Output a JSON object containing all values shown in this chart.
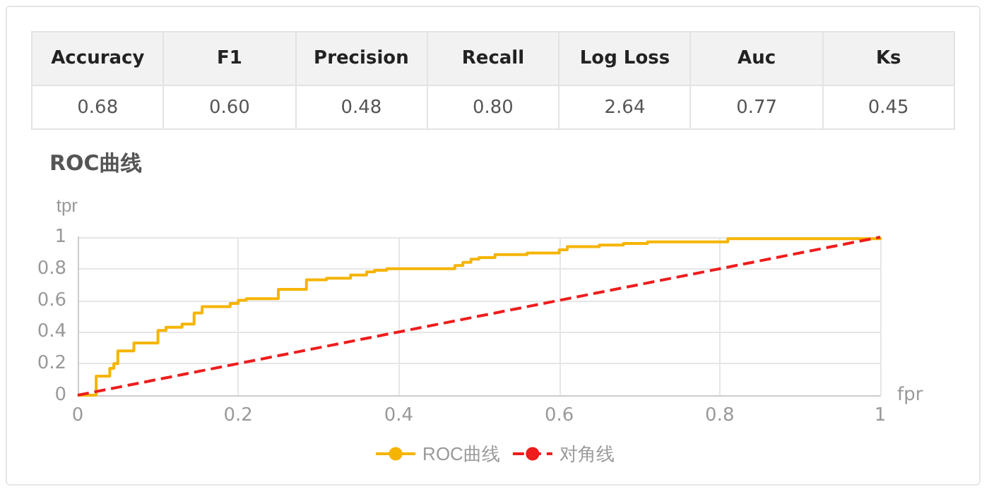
{
  "chart_data": [
    {
      "type": "other",
      "categories": [
        "Accuracy",
        "F1",
        "Precision",
        "Recall",
        "Log Loss",
        "Auc",
        "Ks"
      ],
      "values": [
        0.68,
        0.6,
        0.48,
        0.8,
        2.64,
        0.77,
        0.45
      ],
      "value_labels": [
        "0.68",
        "0.60",
        "0.48",
        "0.80",
        "2.64",
        "0.77",
        "0.45"
      ]
    },
    {
      "type": "line",
      "title": "ROC曲线",
      "xlabel": "fpr",
      "ylabel": "tpr",
      "xlim": [
        0,
        1
      ],
      "ylim": [
        0,
        1
      ],
      "xticks": [
        0,
        0.2,
        0.4,
        0.6,
        0.8,
        1
      ],
      "yticks": [
        0,
        0.2,
        0.4,
        0.6,
        0.8,
        1
      ],
      "grid": true,
      "legend": "bottom",
      "series": [
        {
          "name": "ROC曲线",
          "type": "step",
          "color": "#f5b400",
          "x": [
            0,
            0.023,
            0.04,
            0.045,
            0.05,
            0.07,
            0.1,
            0.11,
            0.13,
            0.145,
            0.155,
            0.19,
            0.2,
            0.21,
            0.25,
            0.285,
            0.31,
            0.34,
            0.36,
            0.37,
            0.385,
            0.47,
            0.48,
            0.49,
            0.5,
            0.52,
            0.56,
            0.6,
            0.61,
            0.65,
            0.68,
            0.71,
            0.81,
            1
          ],
          "values": [
            0,
            0.12,
            0.17,
            0.2,
            0.28,
            0.33,
            0.41,
            0.43,
            0.45,
            0.52,
            0.56,
            0.58,
            0.6,
            0.61,
            0.67,
            0.73,
            0.74,
            0.76,
            0.78,
            0.79,
            0.8,
            0.82,
            0.84,
            0.86,
            0.87,
            0.89,
            0.9,
            0.92,
            0.94,
            0.95,
            0.96,
            0.97,
            0.99,
            1
          ]
        },
        {
          "name": "对角线",
          "type": "line",
          "line_style": "dashed",
          "color": "#ee1c1c",
          "x": [
            0,
            1
          ],
          "values": [
            0,
            1
          ]
        }
      ]
    }
  ]
}
